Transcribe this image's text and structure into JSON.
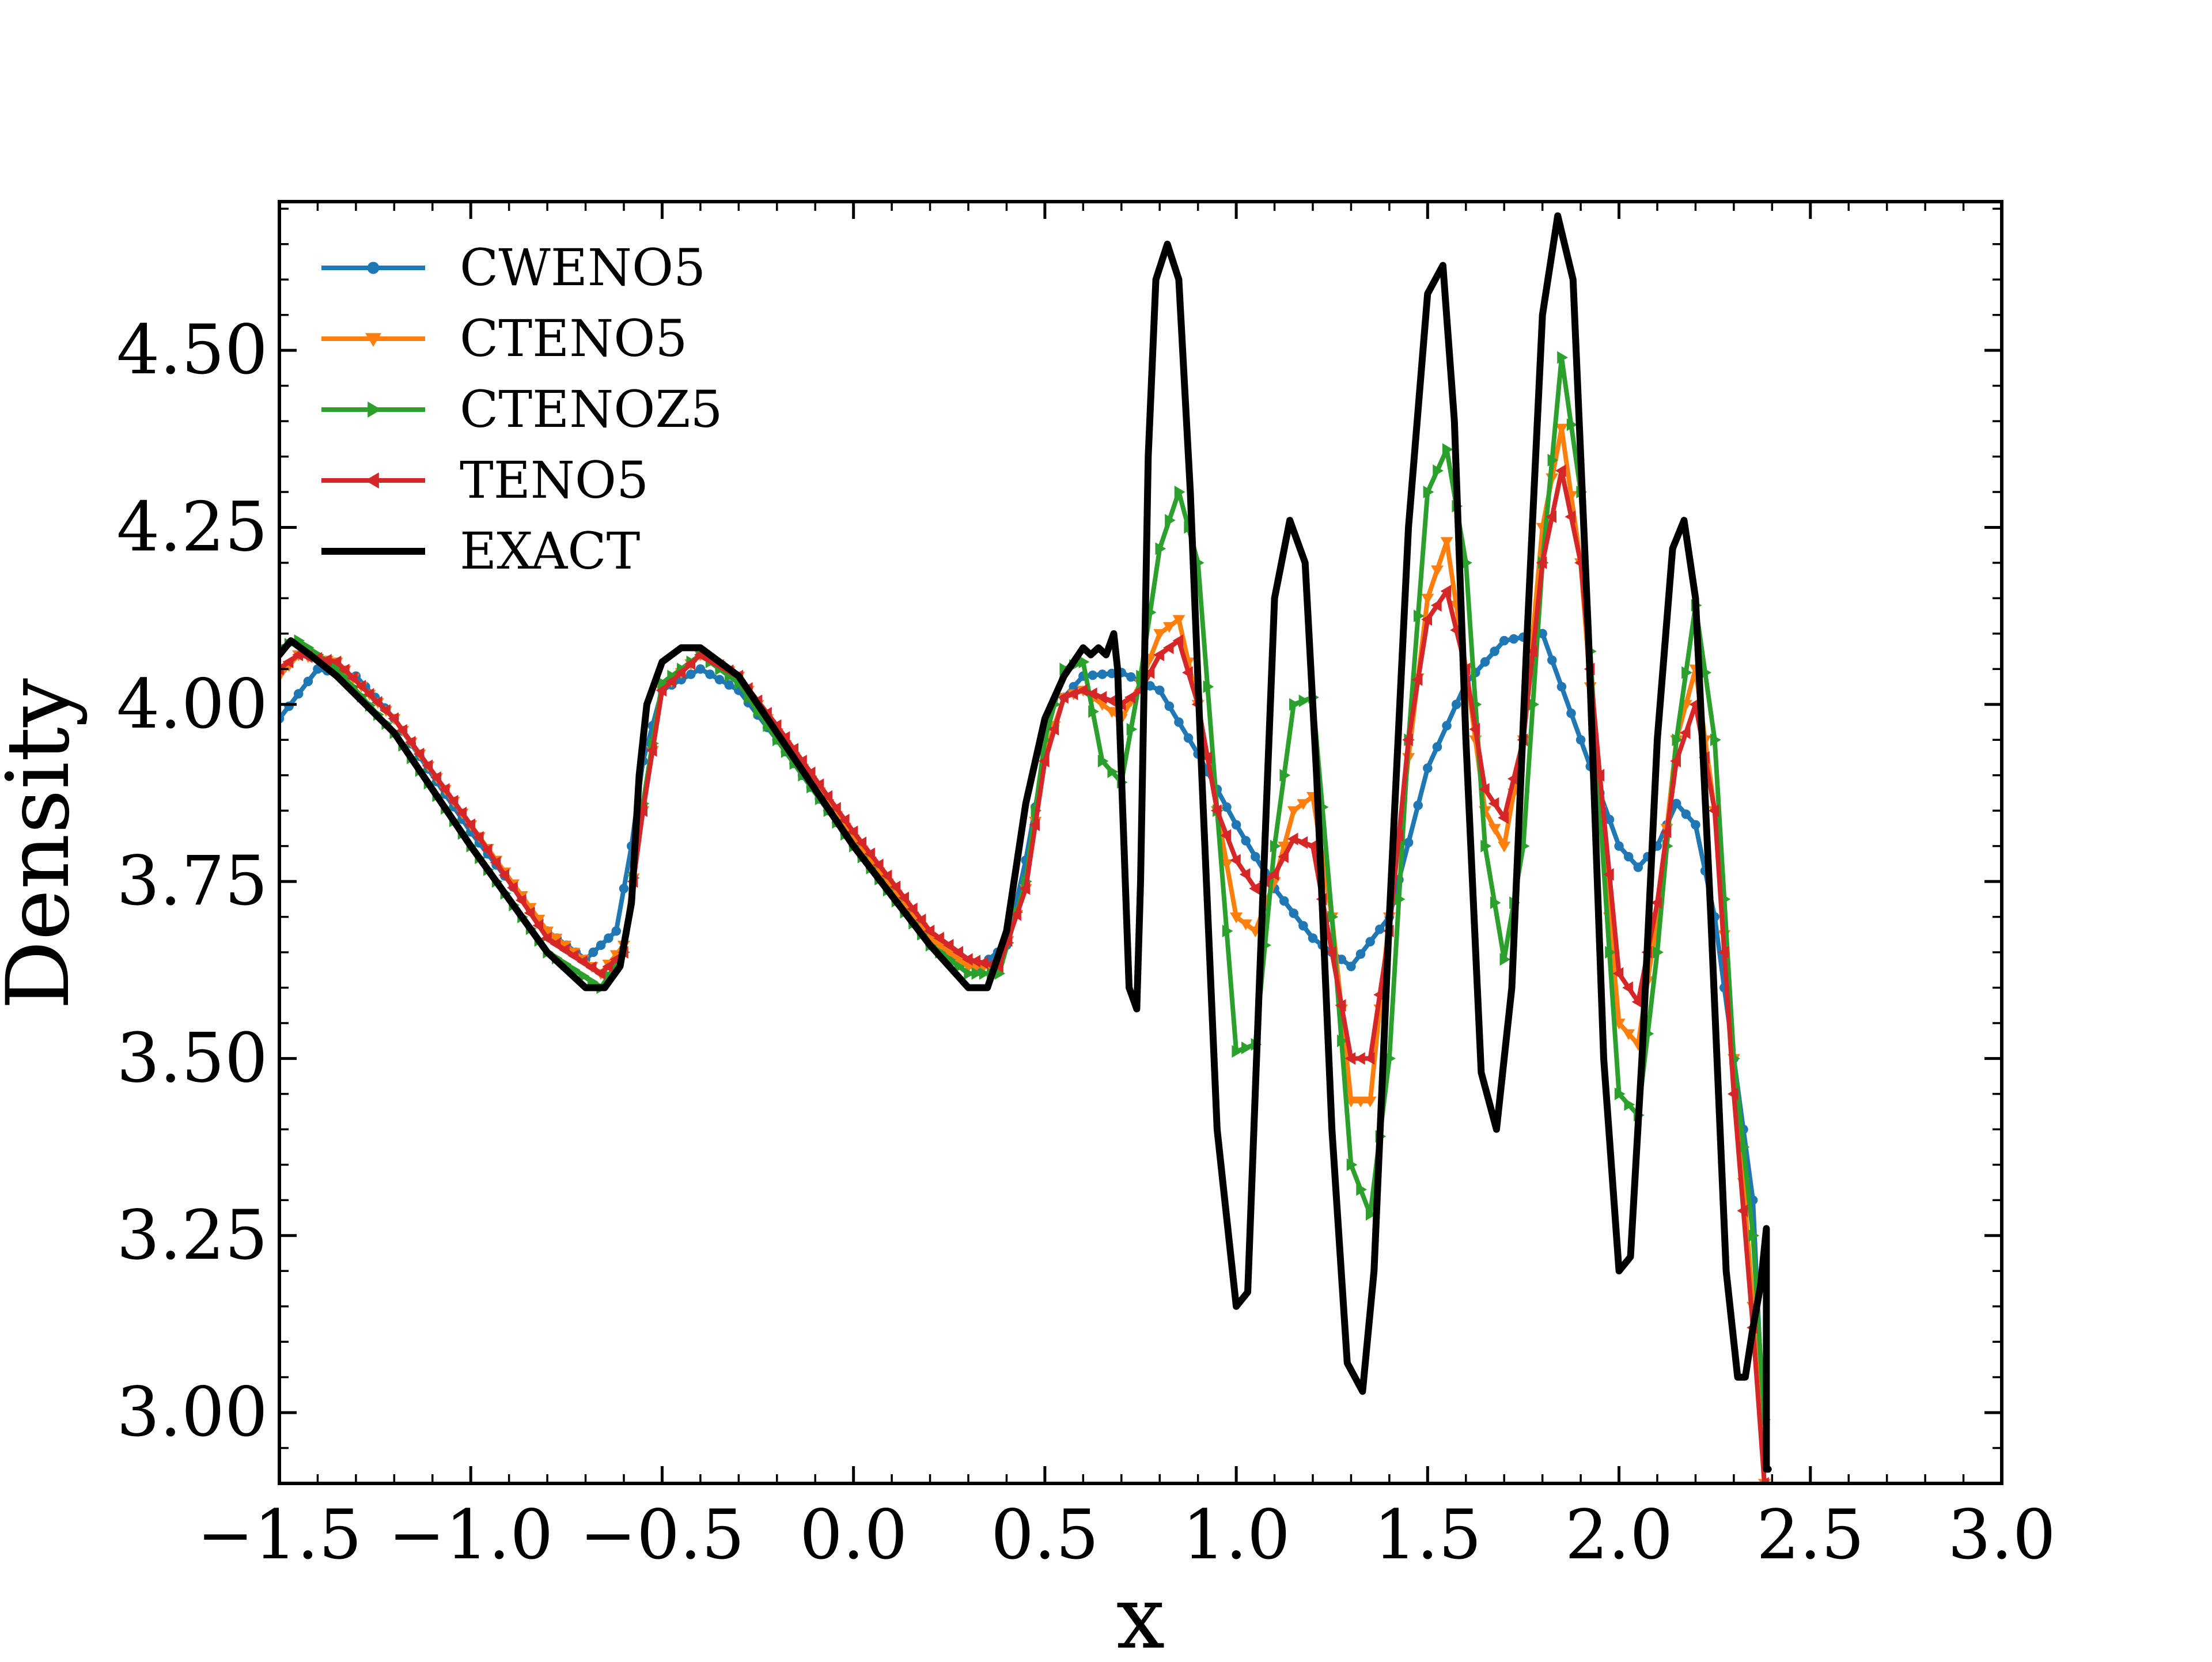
{
  "chart_data": {
    "type": "line",
    "xlabel": "x",
    "ylabel": "Density",
    "xlim": [
      -1.5,
      3.0
    ],
    "ylim": [
      2.9,
      4.71
    ],
    "xticks": [
      -1.5,
      -1.0,
      -0.5,
      0.0,
      0.5,
      1.0,
      1.5,
      2.0,
      2.5,
      3.0
    ],
    "xtick_labels": [
      "−1.5",
      "−1.0",
      "−0.5",
      "0.0",
      "0.5",
      "1.0",
      "1.5",
      "2.0",
      "2.5",
      "3.0"
    ],
    "yticks": [
      3.0,
      3.25,
      3.5,
      3.75,
      4.0,
      4.25,
      4.5
    ],
    "ytick_labels": [
      "3.00",
      "3.25",
      "3.50",
      "3.75",
      "4.00",
      "4.25",
      "4.50"
    ],
    "grid": false,
    "legend_position": "top-left",
    "series": [
      {
        "name": "CWENO5",
        "color": "#1f77b4",
        "marker": "circle",
        "x": [
          -1.5,
          -1.4,
          -1.3,
          -1.2,
          -1.0,
          -0.8,
          -0.7,
          -0.62,
          -0.58,
          -0.55,
          -0.5,
          -0.4,
          -0.3,
          -0.2,
          0.0,
          0.2,
          0.33,
          0.4,
          0.45,
          0.5,
          0.55,
          0.6,
          0.7,
          0.8,
          0.9,
          1.0,
          1.1,
          1.2,
          1.3,
          1.4,
          1.5,
          1.6,
          1.7,
          1.8,
          1.9,
          2.0,
          2.05,
          2.1,
          2.15,
          2.2,
          2.25,
          2.3,
          2.35,
          2.38
        ],
        "y": [
          3.98,
          4.05,
          4.04,
          3.98,
          3.82,
          3.68,
          3.64,
          3.68,
          3.8,
          3.92,
          4.02,
          4.05,
          4.02,
          3.95,
          3.8,
          3.66,
          3.63,
          3.66,
          3.78,
          3.93,
          4.01,
          4.04,
          4.045,
          4.02,
          3.93,
          3.83,
          3.74,
          3.67,
          3.63,
          3.7,
          3.91,
          4.03,
          4.09,
          4.1,
          3.95,
          3.8,
          3.77,
          3.8,
          3.86,
          3.83,
          3.7,
          3.5,
          3.3,
          2.95
        ]
      },
      {
        "name": "CTENO5",
        "color": "#ff7f0e",
        "marker": "triangle-down",
        "x": [
          -1.5,
          -1.45,
          -1.35,
          -1.2,
          -1.0,
          -0.8,
          -0.66,
          -0.6,
          -0.55,
          -0.5,
          -0.4,
          -0.3,
          -0.2,
          0.0,
          0.2,
          0.3,
          0.38,
          0.45,
          0.5,
          0.55,
          0.6,
          0.7,
          0.75,
          0.8,
          0.85,
          0.9,
          1.0,
          1.05,
          1.1,
          1.15,
          1.2,
          1.25,
          1.3,
          1.35,
          1.4,
          1.5,
          1.55,
          1.6,
          1.65,
          1.7,
          1.75,
          1.8,
          1.85,
          1.9,
          1.95,
          2.0,
          2.05,
          2.1,
          2.15,
          2.2,
          2.25,
          2.3,
          2.35,
          2.38
        ],
        "y": [
          4.04,
          4.07,
          4.06,
          3.98,
          3.83,
          3.68,
          3.62,
          3.66,
          3.85,
          4.02,
          4.07,
          4.04,
          3.96,
          3.81,
          3.67,
          3.63,
          3.63,
          3.74,
          3.93,
          4.01,
          4.02,
          3.98,
          4.03,
          4.1,
          4.12,
          4.0,
          3.7,
          3.68,
          3.75,
          3.85,
          3.87,
          3.7,
          3.44,
          3.44,
          3.7,
          4.15,
          4.23,
          4.05,
          3.85,
          3.8,
          3.95,
          4.25,
          4.39,
          4.2,
          3.85,
          3.55,
          3.52,
          3.7,
          3.95,
          4.05,
          3.85,
          3.5,
          3.15,
          2.9
        ]
      },
      {
        "name": "CTENOZ5",
        "color": "#2ca02c",
        "marker": "triangle-right",
        "x": [
          -1.5,
          -1.45,
          -1.35,
          -1.2,
          -1.0,
          -0.8,
          -0.66,
          -0.6,
          -0.55,
          -0.5,
          -0.4,
          -0.3,
          -0.2,
          0.0,
          0.2,
          0.3,
          0.38,
          0.45,
          0.5,
          0.55,
          0.6,
          0.65,
          0.7,
          0.75,
          0.8,
          0.85,
          0.9,
          0.95,
          1.0,
          1.05,
          1.1,
          1.15,
          1.2,
          1.25,
          1.3,
          1.35,
          1.4,
          1.45,
          1.5,
          1.55,
          1.6,
          1.65,
          1.7,
          1.75,
          1.8,
          1.85,
          1.9,
          1.95,
          2.0,
          2.05,
          2.1,
          2.15,
          2.2,
          2.25,
          2.3,
          2.35,
          2.38
        ],
        "y": [
          4.08,
          4.09,
          4.05,
          3.96,
          3.8,
          3.65,
          3.6,
          3.65,
          3.86,
          4.03,
          4.07,
          4.03,
          3.95,
          3.8,
          3.66,
          3.62,
          3.62,
          3.75,
          3.95,
          4.05,
          4.06,
          3.92,
          3.89,
          4.04,
          4.22,
          4.3,
          4.2,
          3.85,
          3.51,
          3.52,
          3.8,
          4.0,
          4.01,
          3.7,
          3.35,
          3.28,
          3.5,
          3.95,
          4.3,
          4.36,
          4.2,
          3.8,
          3.64,
          3.8,
          4.2,
          4.49,
          4.3,
          3.85,
          3.45,
          3.42,
          3.65,
          3.95,
          4.14,
          3.95,
          3.5,
          3.25,
          2.99
        ]
      },
      {
        "name": "TENO5",
        "color": "#d62728",
        "marker": "triangle-left",
        "x": [
          -1.5,
          -1.45,
          -1.35,
          -1.2,
          -1.0,
          -0.8,
          -0.66,
          -0.6,
          -0.55,
          -0.5,
          -0.4,
          -0.3,
          -0.2,
          0.0,
          0.2,
          0.3,
          0.38,
          0.45,
          0.5,
          0.55,
          0.6,
          0.7,
          0.75,
          0.8,
          0.85,
          0.9,
          0.95,
          1.0,
          1.05,
          1.1,
          1.15,
          1.2,
          1.25,
          1.3,
          1.35,
          1.4,
          1.45,
          1.5,
          1.55,
          1.6,
          1.65,
          1.7,
          1.75,
          1.8,
          1.85,
          1.9,
          1.95,
          2.0,
          2.05,
          2.1,
          2.15,
          2.2,
          2.25,
          2.3,
          2.35,
          2.38
        ],
        "y": [
          4.05,
          4.07,
          4.06,
          3.98,
          3.83,
          3.67,
          3.62,
          3.65,
          3.85,
          4.02,
          4.07,
          4.04,
          3.97,
          3.82,
          3.68,
          3.64,
          3.63,
          3.74,
          3.92,
          4.01,
          4.02,
          4.0,
          4.02,
          4.07,
          4.09,
          4.0,
          3.85,
          3.78,
          3.74,
          3.76,
          3.81,
          3.8,
          3.65,
          3.5,
          3.5,
          3.68,
          3.95,
          4.12,
          4.16,
          4.05,
          3.88,
          3.84,
          3.95,
          4.2,
          4.33,
          4.2,
          3.9,
          3.62,
          3.58,
          3.72,
          3.92,
          4.0,
          3.85,
          3.45,
          3.12,
          2.9
        ]
      },
      {
        "name": "EXACT",
        "color": "#000000",
        "marker": "none",
        "x": [
          -1.5,
          -1.47,
          -1.42,
          -1.35,
          -1.2,
          -1.0,
          -0.8,
          -0.7,
          -0.65,
          -0.61,
          -0.58,
          -0.56,
          -0.54,
          -0.5,
          -0.45,
          -0.4,
          -0.3,
          -0.2,
          0.0,
          0.2,
          0.3,
          0.35,
          0.4,
          0.45,
          0.5,
          0.55,
          0.6,
          0.62,
          0.64,
          0.66,
          0.68,
          0.69,
          0.7,
          0.72,
          0.74,
          0.75,
          0.77,
          0.79,
          0.82,
          0.85,
          0.88,
          0.91,
          0.95,
          1.0,
          1.03,
          1.06,
          1.1,
          1.14,
          1.18,
          1.21,
          1.25,
          1.29,
          1.33,
          1.36,
          1.4,
          1.45,
          1.5,
          1.54,
          1.57,
          1.6,
          1.64,
          1.68,
          1.72,
          1.76,
          1.8,
          1.84,
          1.88,
          1.92,
          1.96,
          2.0,
          2.03,
          2.06,
          2.1,
          2.14,
          2.17,
          2.2,
          2.24,
          2.28,
          2.31,
          2.33,
          2.35,
          2.37,
          2.385,
          2.385,
          2.39
        ],
        "y": [
          4.07,
          4.09,
          4.07,
          4.04,
          3.96,
          3.8,
          3.65,
          3.6,
          3.6,
          3.63,
          3.72,
          3.9,
          4.0,
          4.06,
          4.08,
          4.08,
          4.04,
          3.96,
          3.8,
          3.66,
          3.6,
          3.6,
          3.68,
          3.86,
          3.98,
          4.04,
          4.08,
          4.07,
          4.08,
          4.07,
          4.1,
          4.05,
          3.9,
          3.6,
          3.57,
          3.75,
          4.35,
          4.6,
          4.65,
          4.6,
          4.3,
          3.9,
          3.4,
          3.15,
          3.17,
          3.6,
          4.15,
          4.26,
          4.2,
          3.9,
          3.4,
          3.07,
          3.03,
          3.2,
          3.7,
          4.25,
          4.58,
          4.62,
          4.4,
          3.95,
          3.48,
          3.4,
          3.6,
          4.1,
          4.55,
          4.69,
          4.6,
          4.1,
          3.5,
          3.2,
          3.22,
          3.5,
          3.95,
          4.22,
          4.26,
          4.15,
          3.7,
          3.2,
          3.05,
          3.05,
          3.12,
          3.18,
          3.26,
          2.92,
          2.92
        ]
      }
    ]
  }
}
